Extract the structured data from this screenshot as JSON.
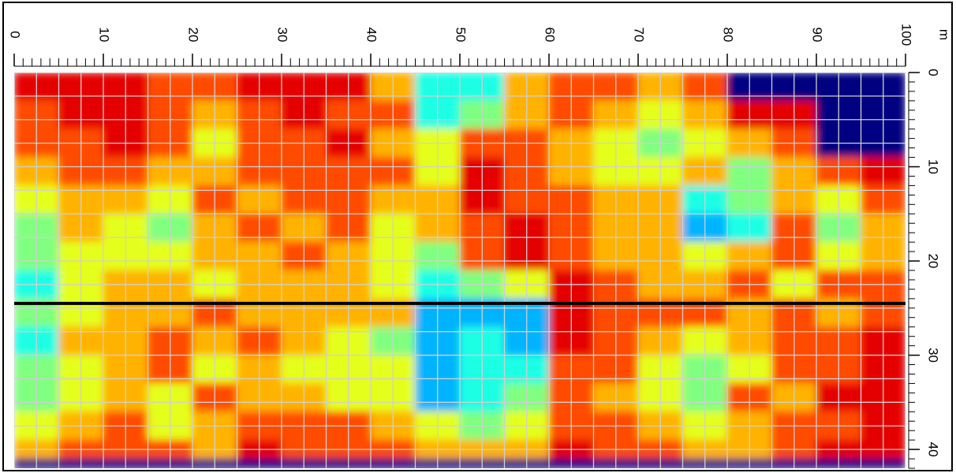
{
  "chart_data": {
    "type": "heatmap",
    "x_unit": "m",
    "xlim": [
      0,
      100
    ],
    "xticks": [
      0,
      10,
      20,
      30,
      40,
      50,
      60,
      70,
      80,
      90,
      100
    ],
    "ylim": [
      0,
      42
    ],
    "yticks": [
      0,
      10,
      20,
      30,
      40
    ],
    "grid": true,
    "x_edges": [
      0,
      5,
      10,
      15,
      20,
      25,
      30,
      35,
      40,
      45,
      50,
      55,
      60,
      65,
      70,
      75,
      80,
      85,
      90,
      95,
      100
    ],
    "y_edges": [
      0,
      3,
      6,
      9,
      12,
      15,
      18,
      21,
      24,
      27,
      30,
      33,
      36,
      39,
      41,
      42
    ],
    "zlim": [
      0,
      10
    ],
    "z": [
      [
        9,
        9,
        9,
        8,
        8,
        9,
        9,
        9,
        7,
        4,
        4,
        7,
        8,
        8,
        7,
        8,
        0,
        0,
        0,
        0
      ],
      [
        8,
        9,
        9,
        8,
        7,
        8,
        9,
        8,
        8,
        4,
        5,
        7,
        8,
        7,
        6,
        7,
        9,
        9,
        0,
        0
      ],
      [
        8,
        8,
        9,
        8,
        6,
        8,
        8,
        9,
        7,
        6,
        8,
        8,
        7,
        6,
        5,
        6,
        7,
        8,
        0,
        0
      ],
      [
        7,
        8,
        8,
        7,
        7,
        8,
        8,
        8,
        8,
        6,
        9,
        8,
        7,
        6,
        6,
        7,
        5,
        7,
        8,
        9
      ],
      [
        6,
        7,
        7,
        6,
        8,
        7,
        8,
        8,
        7,
        7,
        9,
        8,
        8,
        7,
        7,
        4,
        5,
        7,
        6,
        8
      ],
      [
        5,
        7,
        6,
        5,
        7,
        8,
        7,
        8,
        6,
        7,
        8,
        9,
        8,
        7,
        7,
        3,
        4,
        8,
        5,
        7
      ],
      [
        5,
        6,
        6,
        6,
        7,
        7,
        8,
        7,
        6,
        5,
        8,
        9,
        8,
        7,
        7,
        6,
        7,
        8,
        6,
        7
      ],
      [
        4,
        6,
        7,
        7,
        6,
        7,
        7,
        7,
        6,
        4,
        5,
        6,
        9,
        8,
        7,
        7,
        8,
        6,
        8,
        8
      ],
      [
        5,
        6,
        7,
        7,
        8,
        7,
        7,
        7,
        7,
        3,
        3,
        3,
        9,
        8,
        8,
        8,
        7,
        8,
        7,
        8
      ],
      [
        4,
        7,
        7,
        8,
        7,
        8,
        7,
        6,
        5,
        3,
        4,
        3,
        9,
        8,
        7,
        6,
        7,
        8,
        8,
        9
      ],
      [
        5,
        6,
        7,
        8,
        6,
        7,
        6,
        6,
        6,
        3,
        4,
        4,
        8,
        8,
        6,
        5,
        6,
        8,
        8,
        9
      ],
      [
        5,
        6,
        7,
        6,
        8,
        7,
        7,
        6,
        6,
        3,
        4,
        5,
        8,
        7,
        6,
        5,
        8,
        7,
        9,
        9
      ],
      [
        6,
        7,
        8,
        6,
        7,
        8,
        8,
        8,
        7,
        6,
        5,
        6,
        8,
        8,
        7,
        6,
        7,
        8,
        8,
        9
      ],
      [
        7,
        8,
        8,
        8,
        7,
        9,
        8,
        8,
        8,
        7,
        7,
        7,
        9,
        8,
        8,
        7,
        7,
        8,
        9,
        9
      ],
      [
        0,
        0,
        0,
        0,
        0,
        0,
        0,
        0,
        0,
        0,
        0,
        0,
        0,
        0,
        0,
        0,
        0,
        0,
        0,
        0
      ]
    ],
    "marker_line_y": 24.5,
    "marker_line_color": "#000000"
  }
}
